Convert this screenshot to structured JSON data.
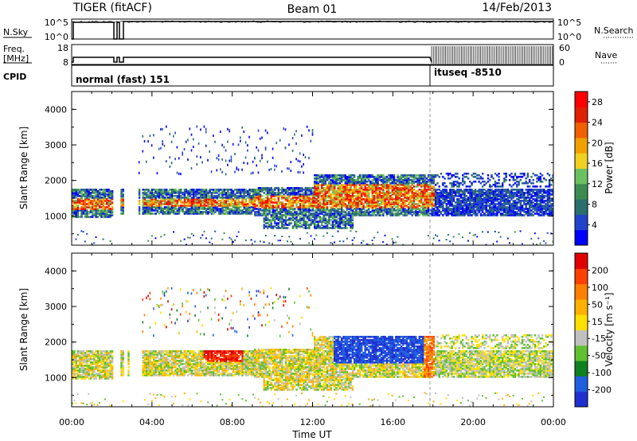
{
  "header": {
    "station": "TIGER (fitACF)",
    "beam": "Beam 01",
    "date": "14/Feb/2013"
  },
  "top_panels": {
    "nsky_label": "N.Sky",
    "nsky_top": "10^5",
    "nsky_bottom": "10^0",
    "nsearch_label": "N.Search",
    "nsearch_top": "10^5",
    "nsearch_bottom": "10^0",
    "freq_label_1": "Freq.",
    "freq_label_2": "[MHz]",
    "freq_top": "18",
    "freq_bottom": "8",
    "nave_label": "Nave",
    "nave_top": "60",
    "nave_bottom": "0",
    "cpid_label": "CPID",
    "cpid_1": "normal (fast) 151",
    "cpid_2": "ituseq -8510"
  },
  "colors": {
    "power_scale": [
      "#0000ff",
      "#2244cc",
      "#2a6e6e",
      "#3c8c50",
      "#6cc060",
      "#f0d020",
      "#f0a000",
      "#f06000",
      "#e02000",
      "#ff0000"
    ],
    "velocity_scale": [
      "#2030d0",
      "#2060e0",
      "#108020",
      "#60c030",
      "#c0c0c0",
      "#ffe000",
      "#ffb000",
      "#ff8000",
      "#ff4000",
      "#e00000"
    ]
  },
  "chart_data": [
    {
      "type": "heatmap",
      "title": "",
      "xlabel": "Time UT",
      "ylabel": "Slant Range [km]",
      "x_ticks": [
        "00:00",
        "04:00",
        "08:00",
        "12:00",
        "16:00",
        "20:00",
        "00:00"
      ],
      "y_ticks": [
        "1000",
        "2000",
        "3000",
        "4000"
      ],
      "ylim": [
        180,
        4500
      ],
      "colorbar_label": "Power [dB]",
      "colorbar_ticks": [
        "4",
        "8",
        "12",
        "16",
        "20",
        "24",
        "28"
      ],
      "colorbar_range": [
        0,
        30
      ]
    },
    {
      "type": "heatmap",
      "title": "",
      "xlabel": "Time UT",
      "ylabel": "Slant Range [km]",
      "x_ticks": [
        "00:00",
        "04:00",
        "08:00",
        "12:00",
        "16:00",
        "20:00",
        "00:00"
      ],
      "y_ticks": [
        "1000",
        "2000",
        "3000",
        "4000"
      ],
      "ylim": [
        180,
        4500
      ],
      "colorbar_label": "Velocity [m s⁻¹]",
      "colorbar_ticks": [
        "200",
        "100",
        "50",
        "15",
        "-15",
        "-50",
        "-100",
        "-200"
      ]
    }
  ]
}
